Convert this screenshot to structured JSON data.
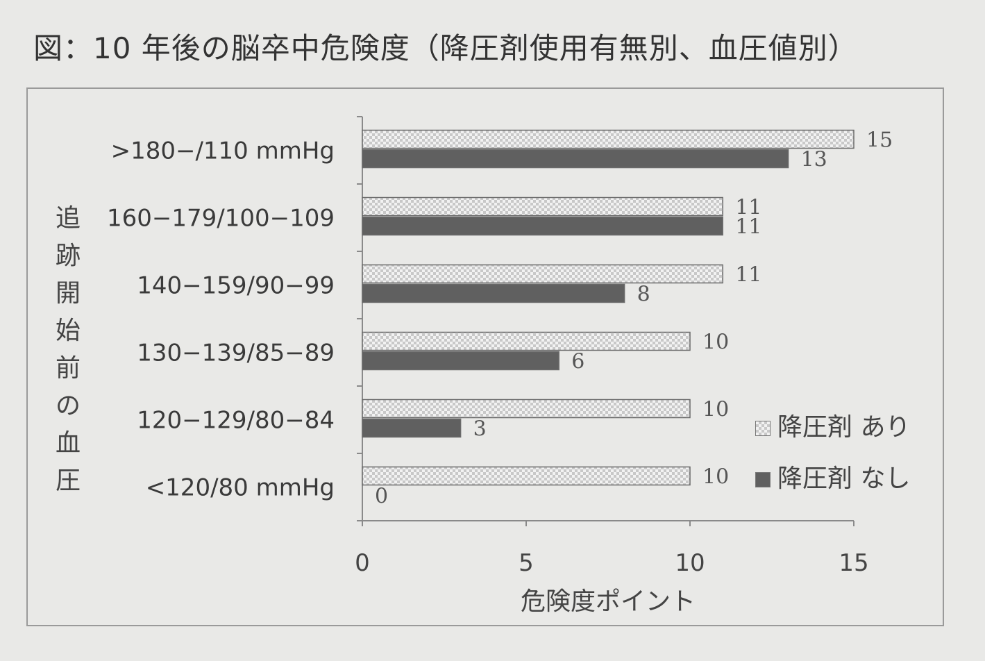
{
  "title": "図：10 年後の脳卒中危険度（降圧剤使用有無別、血圧値別）",
  "chart_data": {
    "type": "bar",
    "orientation": "horizontal",
    "categories": [
      ">180−/110 mmHg",
      "160−179/100−109",
      "140−159/90−99",
      "130−139/85−89",
      "120−129/80−84",
      "<120/80 mmHg"
    ],
    "series": [
      {
        "name": "降圧剤 あり",
        "values": [
          15,
          11,
          11,
          10,
          10,
          10
        ],
        "pattern": "checker"
      },
      {
        "name": "降圧剤 なし",
        "values": [
          13,
          11,
          8,
          6,
          3,
          0
        ],
        "pattern": "solid"
      }
    ],
    "xlabel": "危険度ポイント",
    "ylabel": "追跡開始前の血圧",
    "xlim": [
      0,
      15
    ],
    "xticks": [
      0,
      5,
      10,
      15
    ],
    "grid": false,
    "legend_position": "bottom-right"
  },
  "colors": {
    "solid_bar": "#606060",
    "checker_a": "#cfcfcf",
    "checker_b": "#f2f2f2",
    "axis": "#8a8a8a"
  }
}
